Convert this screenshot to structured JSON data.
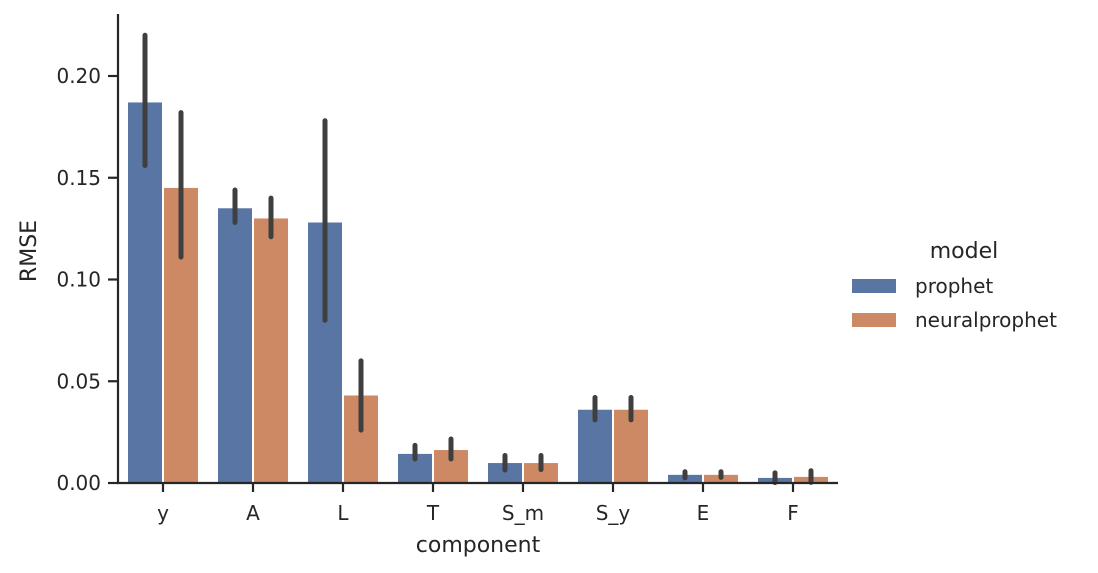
{
  "chart_data": {
    "type": "bar",
    "title": "",
    "xlabel": "component",
    "ylabel": "RMSE",
    "ylim": [
      0.0,
      0.23
    ],
    "yticks": [
      0.0,
      0.05,
      0.1,
      0.15,
      0.2
    ],
    "ytick_labels": [
      "0.00",
      "0.05",
      "0.10",
      "0.15",
      "0.20"
    ],
    "grid": false,
    "legend_position": "right",
    "legend_title": "model",
    "categories": [
      "y",
      "A",
      "L",
      "T",
      "S_m",
      "S_y",
      "E",
      "F"
    ],
    "series": [
      {
        "name": "prophet",
        "color": "#5875a4",
        "values": [
          0.187,
          0.135,
          0.128,
          0.0143,
          0.0098,
          0.036,
          0.004,
          0.0025
        ],
        "ci_low": [
          0.156,
          0.128,
          0.08,
          0.0118,
          0.0064,
          0.031,
          0.0025,
          0.0002
        ],
        "ci_high": [
          0.22,
          0.144,
          0.178,
          0.0185,
          0.0135,
          0.042,
          0.0055,
          0.005
        ]
      },
      {
        "name": "neuralprophet",
        "color": "#cc8963",
        "values": [
          0.145,
          0.13,
          0.043,
          0.0162,
          0.0098,
          0.036,
          0.004,
          0.003
        ],
        "ci_low": [
          0.111,
          0.121,
          0.026,
          0.0118,
          0.0066,
          0.031,
          0.0028,
          0.0003
        ],
        "ci_high": [
          0.182,
          0.14,
          0.06,
          0.0216,
          0.0135,
          0.042,
          0.0055,
          0.006
        ]
      }
    ],
    "errorbar_color": "#3f3f3f"
  },
  "legend": {
    "title": "model",
    "items": [
      {
        "label": "prophet",
        "color": "#5875a4"
      },
      {
        "label": "neuralprophet",
        "color": "#cc8963"
      }
    ]
  }
}
